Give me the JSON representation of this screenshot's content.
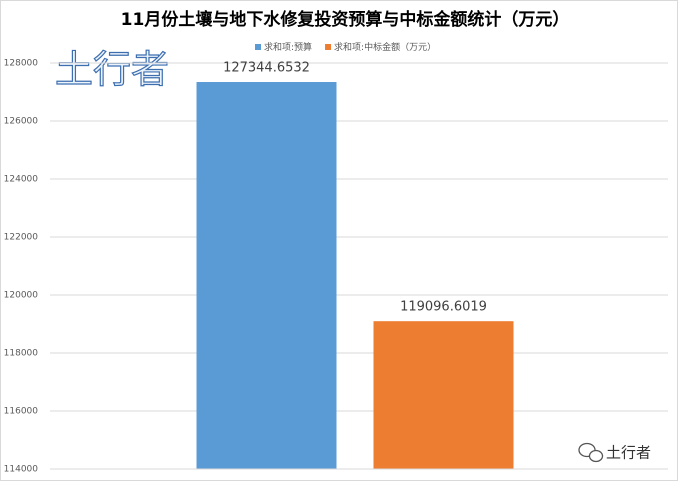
{
  "chart_data": {
    "type": "bar",
    "title": "11月份土壤与地下水修复投资预算与中标金额统计（万元）",
    "categories": [
      null
    ],
    "series": [
      {
        "name": "求和项:预算",
        "color": "#5b9bd5",
        "values": [
          127344.6532
        ]
      },
      {
        "name": "求和项:中标金额（万元）",
        "color": "#ed7d31",
        "values": [
          119096.6019
        ]
      }
    ],
    "ylim": [
      114000,
      128000
    ],
    "yticks": [
      114000,
      116000,
      118000,
      120000,
      122000,
      124000,
      126000,
      128000
    ],
    "grid": true,
    "legend": "top",
    "watermark": "土行者",
    "badge": "土行者"
  }
}
